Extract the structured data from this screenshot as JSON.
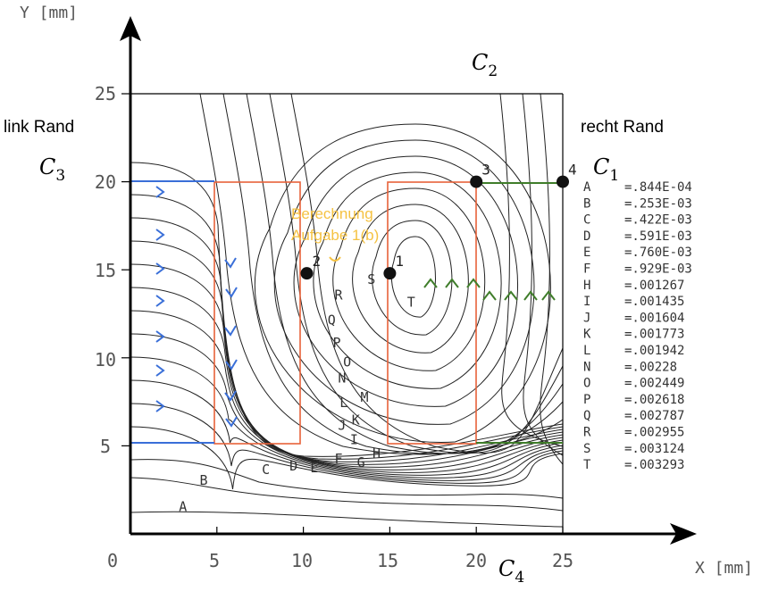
{
  "axes": {
    "y_label": "Y [mm]",
    "x_label": "X [mm]",
    "x_ticks": [
      "0",
      "5",
      "10",
      "15",
      "20",
      "25"
    ],
    "y_ticks": [
      "5",
      "10",
      "15",
      "20",
      "25"
    ]
  },
  "boundaries": {
    "top": {
      "sym": "C",
      "sub": "2"
    },
    "right": {
      "sym": "C",
      "sub": "1"
    },
    "left": {
      "sym": "C",
      "sub": "3"
    },
    "bottom": {
      "sym": "C",
      "sub": "4"
    },
    "left_text": "link Rand",
    "right_text": "recht Rand"
  },
  "points": [
    {
      "label": "1",
      "x": 15,
      "y": 14.8
    },
    {
      "label": "2",
      "x": 10.2,
      "y": 14.8
    },
    {
      "label": "3",
      "x": 20,
      "y": 20
    },
    {
      "label": "4",
      "x": 25,
      "y": 20
    }
  ],
  "annotation": {
    "line1": "Berechnung",
    "line2": "Aufgabe 1(b)",
    "color": "#f5c242"
  },
  "contour_labels": [
    {
      "l": "A",
      "x": 2.8,
      "y": 1.3
    },
    {
      "l": "B",
      "x": 4.0,
      "y": 2.8
    },
    {
      "l": "C",
      "x": 7.6,
      "y": 3.4
    },
    {
      "l": "D",
      "x": 9.2,
      "y": 3.6
    },
    {
      "l": "E",
      "x": 10.4,
      "y": 3.5
    },
    {
      "l": "F",
      "x": 11.8,
      "y": 4.0
    },
    {
      "l": "G",
      "x": 13.1,
      "y": 3.8
    },
    {
      "l": "H",
      "x": 14.0,
      "y": 4.3
    },
    {
      "l": "I",
      "x": 12.7,
      "y": 5.1
    },
    {
      "l": "J",
      "x": 12.0,
      "y": 5.9
    },
    {
      "l": "K",
      "x": 12.8,
      "y": 6.2
    },
    {
      "l": "L",
      "x": 12.1,
      "y": 7.2
    },
    {
      "l": "M",
      "x": 13.3,
      "y": 7.5
    },
    {
      "l": "N",
      "x": 12.0,
      "y": 8.6
    },
    {
      "l": "O",
      "x": 12.3,
      "y": 9.5
    },
    {
      "l": "P",
      "x": 11.7,
      "y": 10.6
    },
    {
      "l": "Q",
      "x": 11.4,
      "y": 11.9
    },
    {
      "l": "R",
      "x": 11.8,
      "y": 13.3
    },
    {
      "l": "S",
      "x": 13.7,
      "y": 14.2
    },
    {
      "l": "T",
      "x": 16.0,
      "y": 12.9
    }
  ],
  "legend": [
    {
      "key": "A",
      "value": "=.844E-04"
    },
    {
      "key": "B",
      "value": "=.253E-03"
    },
    {
      "key": "C",
      "value": "=.422E-03"
    },
    {
      "key": "D",
      "value": "=.591E-03"
    },
    {
      "key": "E",
      "value": "=.760E-03"
    },
    {
      "key": "F",
      "value": "=.929E-03"
    },
    {
      "key": "H",
      "value": "=.001267"
    },
    {
      "key": "I",
      "value": "=.001435"
    },
    {
      "key": "J",
      "value": "=.001604"
    },
    {
      "key": "K",
      "value": "=.001773"
    },
    {
      "key": "L",
      "value": "=.001942"
    },
    {
      "key": "N",
      "value": "=.00228"
    },
    {
      "key": "O",
      "value": "=.002449"
    },
    {
      "key": "P",
      "value": "=.002618"
    },
    {
      "key": "Q",
      "value": "=.002787"
    },
    {
      "key": "R",
      "value": "=.002955"
    },
    {
      "key": "S",
      "value": "=.003124"
    },
    {
      "key": "T",
      "value": "=.003293"
    }
  ],
  "colors": {
    "contour": "#222222",
    "axis": "#000000",
    "rect": "#e8623a",
    "blue": "#3a6fd8",
    "green": "#3f7d2a",
    "annotation": "#f5c242"
  }
}
